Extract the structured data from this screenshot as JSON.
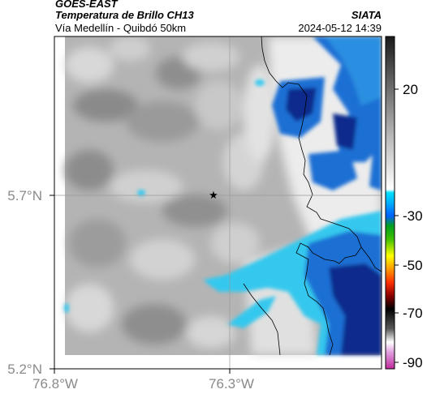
{
  "header": {
    "satellite": "GOES-EAST",
    "product": "Temperatura de Brillo CH13",
    "region": "Vía Medellín - Quibdó 50km",
    "agency": "SIATA",
    "datetime": "2024-05-12 14:39"
  },
  "axes": {
    "lon_ticks": [
      "76.8°W",
      "76.3°W"
    ],
    "lat_ticks": [
      "5.2°N",
      "5.7°N"
    ]
  },
  "colorbar": {
    "ticks": [
      "20",
      "-30",
      "-50",
      "-70",
      "-90"
    ]
  },
  "colors": {
    "cold_dark": "#0a2a8c",
    "cold_mid": "#1c6fd4",
    "cold_light": "#35c8ee",
    "cloud_gray": "#a8a8a8",
    "clear_light": "#e6e6e6",
    "border_line": "#000000"
  }
}
